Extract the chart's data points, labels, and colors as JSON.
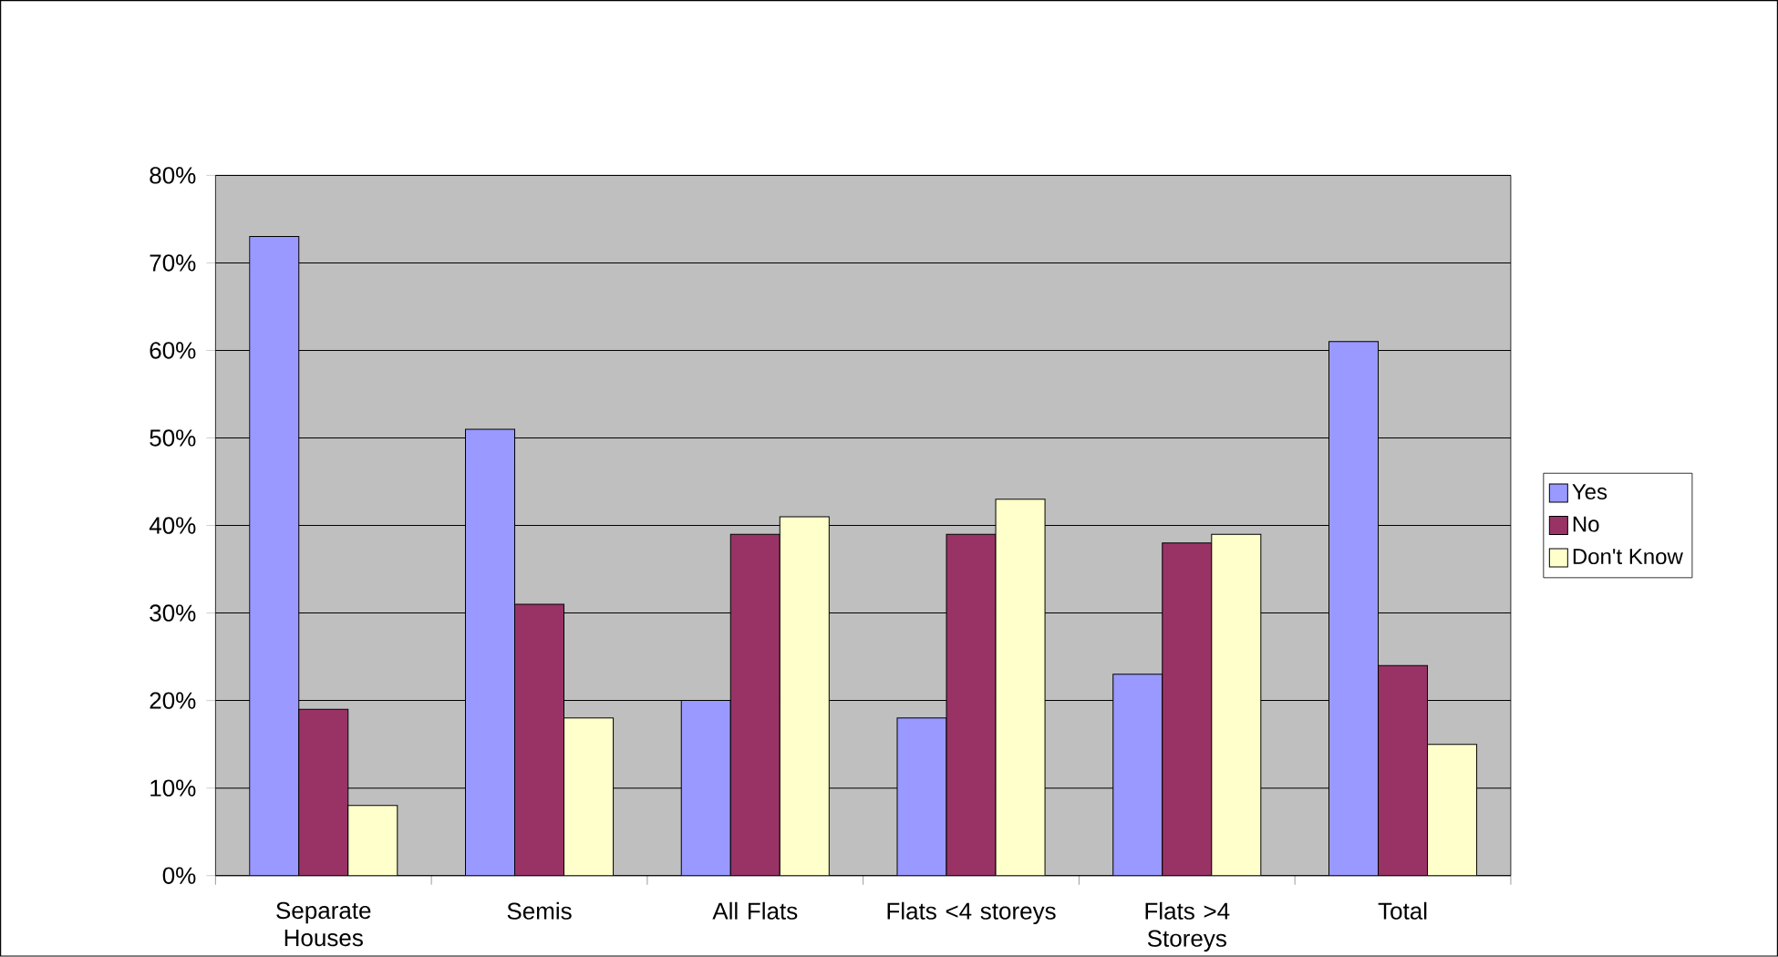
{
  "chart_data": {
    "type": "bar",
    "categories": [
      "Separate Houses",
      "Semis",
      "All Flats",
      "Flats <4 storeys",
      "Flats >4 Storeys",
      "Total"
    ],
    "series": [
      {
        "name": "Yes",
        "color": "#9999ff",
        "values": [
          73,
          51,
          20,
          18,
          23,
          61
        ]
      },
      {
        "name": "No",
        "color": "#993366",
        "values": [
          19,
          31,
          39,
          39,
          38,
          24
        ]
      },
      {
        "name": "Don't Know",
        "color": "#ffffcc",
        "values": [
          8,
          18,
          41,
          43,
          39,
          15
        ]
      }
    ],
    "ylim": [
      0,
      80
    ],
    "yticks": [
      {
        "value": 0,
        "label": "0%"
      },
      {
        "value": 10,
        "label": "10%"
      },
      {
        "value": 20,
        "label": "20%"
      },
      {
        "value": 30,
        "label": "30%"
      },
      {
        "value": 40,
        "label": "40%"
      },
      {
        "value": 50,
        "label": "50%"
      },
      {
        "value": 60,
        "label": "60%"
      },
      {
        "value": 70,
        "label": "70%"
      },
      {
        "value": 80,
        "label": "80%"
      }
    ],
    "grid": "y",
    "legend": "right"
  }
}
